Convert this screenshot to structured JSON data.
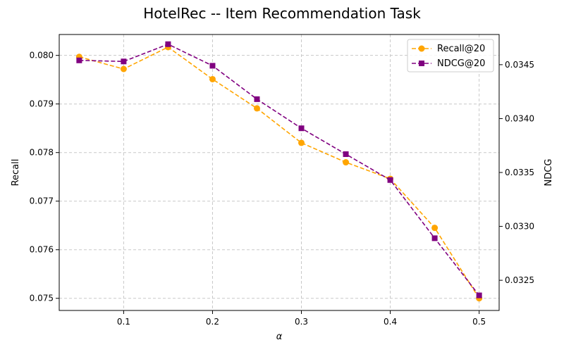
{
  "chart_data": {
    "type": "line",
    "title": "HotelRec -- Item Recommendation Task",
    "xlabel": "α",
    "ylabel_left": "Recall",
    "ylabel_right": "NDCG",
    "x": [
      0.05,
      0.1,
      0.15,
      0.2,
      0.25,
      0.3,
      0.35,
      0.4,
      0.45,
      0.5
    ],
    "xticks": [
      "0.1",
      "0.2",
      "0.3",
      "0.4",
      "0.5"
    ],
    "xlim": [
      0.0275,
      0.5225
    ],
    "ylim_left": [
      0.07475,
      0.08043
    ],
    "ylim_right": [
      0.03222,
      0.03478
    ],
    "yticks_left": [
      "0.075",
      "0.076",
      "0.077",
      "0.078",
      "0.079",
      "0.080"
    ],
    "yticks_right": [
      "0.0325",
      "0.0330",
      "0.0335",
      "0.0340",
      "0.0345"
    ],
    "grid": true,
    "legend_position": "top-right",
    "series": [
      {
        "name": "Recall@20",
        "axis": "left",
        "color": "#FFA500",
        "marker": "circle",
        "linestyle": "dashed",
        "values": [
          0.07997,
          0.07972,
          0.08017,
          0.07951,
          0.07891,
          0.0782,
          0.0778,
          0.07746,
          0.07645,
          0.075
        ]
      },
      {
        "name": "NDCG@20",
        "axis": "right",
        "color": "#800080",
        "marker": "square",
        "linestyle": "dashed",
        "values": [
          0.03454,
          0.03453,
          0.03469,
          0.03449,
          0.03418,
          0.03391,
          0.03367,
          0.03343,
          0.03289,
          0.03236
        ]
      }
    ]
  }
}
